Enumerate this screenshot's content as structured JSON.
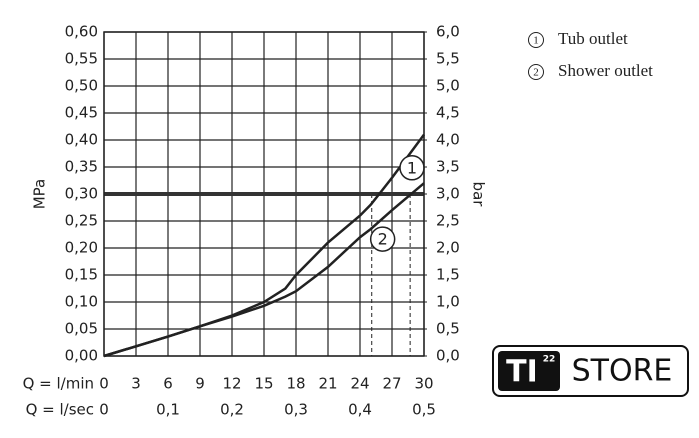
{
  "chart_data": {
    "type": "line",
    "x_label": "Q = l/min",
    "x2_label": "Q = l/sec",
    "y_label": "MPa",
    "y2_label": "bar",
    "x": [
      0,
      3,
      6,
      9,
      12,
      15,
      17,
      18,
      20,
      21,
      24,
      25,
      27,
      30
    ],
    "series": [
      {
        "name": "Tub outlet",
        "label": "1",
        "color": "#222222",
        "values": [
          0,
          0.018,
          0.036,
          0.055,
          0.075,
          0.1,
          0.125,
          0.15,
          0.19,
          0.21,
          0.26,
          0.28,
          0.33,
          0.41
        ]
      },
      {
        "name": "Shower outlet",
        "label": "2",
        "color": "#222222",
        "values": [
          0,
          0.018,
          0.036,
          0.055,
          0.073,
          0.093,
          0.11,
          0.12,
          0.15,
          0.165,
          0.22,
          0.235,
          0.27,
          0.32
        ]
      }
    ],
    "reference_line": 0.3,
    "dashed_x": [
      25.1,
      28.7
    ],
    "xlim": [
      0,
      30
    ],
    "xticks": [
      0,
      3,
      6,
      9,
      12,
      15,
      18,
      21,
      24,
      27,
      30
    ],
    "x2lim": [
      0,
      0.5
    ],
    "x2ticks": [
      0,
      {
        "value": 0.1,
        "label": "0,1"
      },
      {
        "value": 0.2,
        "label": "0,2"
      },
      {
        "value": 0.3,
        "label": "0,3"
      },
      {
        "value": 0.4,
        "label": "0,4"
      },
      {
        "value": 0.5,
        "label": "0,5"
      }
    ],
    "ylim": [
      0,
      0.6
    ],
    "yticks": [
      {
        "value": 0,
        "label": "0,00"
      },
      {
        "value": 0.05,
        "label": "0,05"
      },
      {
        "value": 0.1,
        "label": "0,10"
      },
      {
        "value": 0.15,
        "label": "0,15"
      },
      {
        "value": 0.2,
        "label": "0,20"
      },
      {
        "value": 0.25,
        "label": "0,25"
      },
      {
        "value": 0.3,
        "label": "0,30"
      },
      {
        "value": 0.35,
        "label": "0,35"
      },
      {
        "value": 0.4,
        "label": "0,40"
      },
      {
        "value": 0.45,
        "label": "0,45"
      },
      {
        "value": 0.5,
        "label": "0,50"
      },
      {
        "value": 0.55,
        "label": "0,55"
      },
      {
        "value": 0.6,
        "label": "0,60"
      }
    ],
    "y2lim": [
      0,
      6
    ],
    "y2ticks": [
      {
        "value": 0,
        "label": "0,0"
      },
      {
        "value": 0.5,
        "label": "0,5"
      },
      {
        "value": 1,
        "label": "1,0"
      },
      {
        "value": 1.5,
        "label": "1,5"
      },
      {
        "value": 2,
        "label": "2,0"
      },
      {
        "value": 2.5,
        "label": "2,5"
      },
      {
        "value": 3,
        "label": "3,0"
      },
      {
        "value": 3.5,
        "label": "3,5"
      },
      {
        "value": 4,
        "label": "4,0"
      },
      {
        "value": 4.5,
        "label": "4,5"
      },
      {
        "value": 5,
        "label": "5,0"
      },
      {
        "value": 5.5,
        "label": "5,5"
      },
      {
        "value": 6,
        "label": "6,0"
      }
    ],
    "grid": true
  },
  "logo": {
    "mark": "TI",
    "sup": "22",
    "text": "STORE"
  }
}
